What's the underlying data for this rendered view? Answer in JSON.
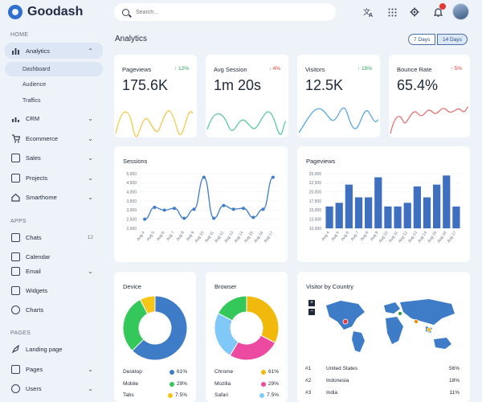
{
  "app": {
    "name": "Goodash"
  },
  "sidebar": {
    "sections": [
      "Home",
      "Apps",
      "Pages"
    ],
    "items": [
      {
        "label": "Analytics",
        "icon": "bar-chart-icon"
      },
      {
        "label": "CRM",
        "icon": "crm-icon"
      },
      {
        "label": "Ecommerce",
        "icon": "cart-icon"
      },
      {
        "label": "Sales",
        "icon": "sales-icon"
      },
      {
        "label": "Projects",
        "icon": "projects-icon"
      },
      {
        "label": "Smarthome",
        "icon": "home-icon"
      },
      {
        "label": "Chats",
        "icon": "chat-icon",
        "count": "12"
      },
      {
        "label": "Calendar",
        "icon": "calendar-icon"
      },
      {
        "label": "Email",
        "icon": "email-icon"
      },
      {
        "label": "Widgets",
        "icon": "widgets-icon"
      },
      {
        "label": "Charts",
        "icon": "charts-icon"
      },
      {
        "label": "Landing page",
        "icon": "rocket-icon"
      },
      {
        "label": "Pages",
        "icon": "pages-icon"
      },
      {
        "label": "Users",
        "icon": "users-icon"
      }
    ],
    "analytics_sub": [
      "Dashboard",
      "Audience",
      "Traffics"
    ]
  },
  "search": {
    "placeholder": "Search..."
  },
  "header": {
    "title": "Analytics",
    "range_7": "7 Days",
    "range_14": "14 Days"
  },
  "stats": [
    {
      "label": "Pageviews",
      "change": "↑ 12%",
      "value": "175.6K",
      "color": "#f2c94c",
      "trend": "up"
    },
    {
      "label": "Avg Session",
      "change": "↓ 4%",
      "value": "1m 20s",
      "color": "#5cc9a7",
      "trend": "down"
    },
    {
      "label": "Visitors",
      "change": "↑ 15%",
      "value": "12.5K",
      "color": "#5aa6e0",
      "trend": "up"
    },
    {
      "label": "Bounce Rate",
      "change": "↑ 5%",
      "value": "65.4%",
      "color": "#e57373",
      "trend": "bad"
    }
  ],
  "sessions": {
    "title": "Sessions",
    "y_ticks": [
      "5,000",
      "4,500",
      "4,000",
      "3,500",
      "3,000",
      "2,500",
      "2,000"
    ],
    "x_labels": [
      "Aug 4",
      "Aug 5",
      "Aug 6",
      "Aug 7",
      "Aug 8",
      "Aug 9",
      "Aug 10",
      "Aug 11",
      "Aug 12",
      "Aug 13",
      "Aug 14",
      "Aug 15",
      "Aug 16",
      "Aug 17"
    ]
  },
  "pageviews_chart": {
    "title": "Pageviews",
    "y_ticks": [
      "25,000",
      "22,500",
      "20,000",
      "17,500",
      "15,000",
      "12,500",
      "10,000"
    ],
    "x_labels": [
      "Aug 4",
      "Aug 5",
      "Aug 6",
      "Aug 7",
      "Aug 8",
      "Aug 9",
      "Aug 10",
      "Aug 11",
      "Aug 12",
      "Aug 13",
      "Aug 14",
      "Aug 15",
      "Aug 16",
      "Aug 17"
    ]
  },
  "chart_data": [
    {
      "type": "line",
      "title": "Sessions",
      "x": [
        "Aug 4",
        "Aug 5",
        "Aug 6",
        "Aug 7",
        "Aug 8",
        "Aug 9",
        "Aug 10",
        "Aug 11",
        "Aug 12",
        "Aug 13",
        "Aug 14",
        "Aug 15",
        "Aug 16",
        "Aug 17"
      ],
      "values": [
        2500,
        3150,
        3000,
        3100,
        2550,
        3050,
        4800,
        2550,
        3250,
        3050,
        3100,
        2600,
        3050,
        4800
      ],
      "ylim": [
        2000,
        5000
      ]
    },
    {
      "type": "bar",
      "title": "Pageviews",
      "x": [
        "Aug 4",
        "Aug 5",
        "Aug 6",
        "Aug 7",
        "Aug 8",
        "Aug 9",
        "Aug 10",
        "Aug 11",
        "Aug 12",
        "Aug 13",
        "Aug 14",
        "Aug 15",
        "Aug 16",
        "Aug 17"
      ],
      "values": [
        16000,
        17000,
        22000,
        18500,
        18500,
        24000,
        16000,
        16000,
        17000,
        21500,
        18500,
        22000,
        24500,
        16000
      ],
      "ylim": [
        10000,
        25000
      ]
    },
    {
      "type": "pie",
      "title": "Device",
      "labels": [
        "Desktop",
        "Mobile",
        "Tabs"
      ],
      "values": [
        61,
        29,
        7.5
      ],
      "colors": [
        "#3f7cc8",
        "#34c759",
        "#f5c518"
      ]
    },
    {
      "type": "pie",
      "title": "Browser",
      "labels": [
        "Chrome",
        "Mozilla",
        "Safari"
      ],
      "values": [
        61,
        29,
        7.5
      ],
      "colors": [
        "#f0b90b",
        "#ec4aa0",
        "#7fc8f8",
        "#34c759"
      ]
    }
  ],
  "device": {
    "title": "Device",
    "rows": [
      {
        "name": "Desktop",
        "pct": "61%",
        "color": "#3f7cc8"
      },
      {
        "name": "Mobile",
        "pct": "29%",
        "color": "#34c759"
      },
      {
        "name": "Tabs",
        "pct": "7.5%",
        "color": "#f5c518"
      }
    ]
  },
  "browser": {
    "title": "Browser",
    "rows": [
      {
        "name": "Chrome",
        "pct": "61%",
        "color": "#f0b90b"
      },
      {
        "name": "Mozilla",
        "pct": "29%",
        "color": "#ec4aa0"
      },
      {
        "name": "Safari",
        "pct": "7.5%",
        "color": "#7fc8f8"
      }
    ]
  },
  "country": {
    "title": "Visitor by Country",
    "zoom_in": "+",
    "zoom_out": "−",
    "rows": [
      {
        "rank": "#1",
        "name": "United States",
        "pct": "56%"
      },
      {
        "rank": "#2",
        "name": "Indonesia",
        "pct": "18%"
      },
      {
        "rank": "#3",
        "name": "India",
        "pct": "11%"
      }
    ]
  }
}
